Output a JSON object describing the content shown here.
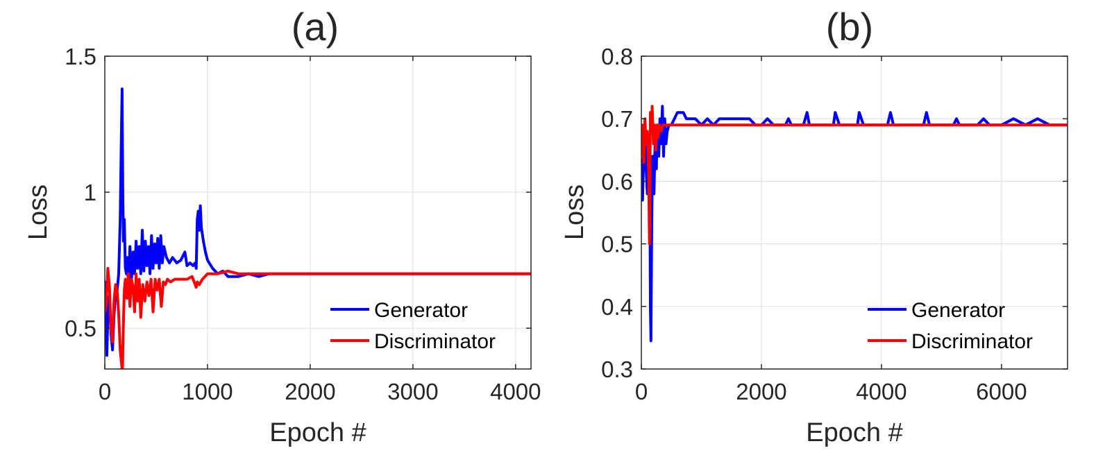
{
  "chart_data": [
    {
      "type": "line",
      "panel_label": "(a)",
      "title": "(a)",
      "xlabel": "Epoch #",
      "ylabel": "Loss",
      "xlim": [
        0,
        4150
      ],
      "ylim": [
        0.35,
        1.5
      ],
      "xticks": [
        0,
        1000,
        2000,
        3000,
        4000
      ],
      "yticks": [
        0.5,
        1,
        1.5
      ],
      "xtick_labels": [
        "0",
        "1000",
        "2000",
        "3000",
        "4000"
      ],
      "ytick_labels": [
        "0.5",
        "1",
        "1.5"
      ],
      "grid": true,
      "legend_position": "bottom-right",
      "series": [
        {
          "name": "Generator",
          "color": "#0000ff",
          "x": [
            0,
            10,
            20,
            30,
            45,
            60,
            75,
            90,
            100,
            110,
            120,
            135,
            150,
            160,
            168,
            175,
            182,
            190,
            200,
            210,
            220,
            230,
            245,
            260,
            275,
            290,
            305,
            320,
            335,
            350,
            365,
            380,
            395,
            410,
            425,
            440,
            455,
            470,
            485,
            500,
            515,
            530,
            545,
            560,
            575,
            600,
            630,
            660,
            700,
            740,
            780,
            800,
            830,
            860,
            880,
            890,
            900,
            910,
            920,
            930,
            940,
            960,
            980,
            1000,
            1050,
            1100,
            1150,
            1200,
            1300,
            1400,
            1500,
            1600,
            1800,
            2000,
            2400,
            2800,
            3200,
            3600,
            4000,
            4150
          ],
          "y": [
            0.67,
            0.55,
            0.4,
            0.55,
            0.62,
            0.48,
            0.42,
            0.55,
            0.6,
            0.62,
            0.64,
            0.7,
            0.9,
            1.18,
            1.38,
            1.0,
            0.82,
            0.9,
            0.72,
            0.7,
            0.76,
            0.65,
            0.8,
            0.68,
            0.78,
            0.7,
            0.82,
            0.72,
            0.8,
            0.7,
            0.86,
            0.71,
            0.82,
            0.73,
            0.8,
            0.7,
            0.84,
            0.72,
            0.81,
            0.74,
            0.83,
            0.72,
            0.84,
            0.74,
            0.8,
            0.76,
            0.74,
            0.76,
            0.74,
            0.75,
            0.78,
            0.73,
            0.74,
            0.73,
            0.74,
            0.72,
            0.9,
            0.93,
            0.86,
            0.95,
            0.87,
            0.82,
            0.78,
            0.75,
            0.72,
            0.7,
            0.71,
            0.69,
            0.69,
            0.7,
            0.69,
            0.7,
            0.7,
            0.7,
            0.7,
            0.7,
            0.7,
            0.7,
            0.7,
            0.7
          ]
        },
        {
          "name": "Discriminator",
          "color": "#ff0000",
          "x": [
            0,
            15,
            30,
            45,
            60,
            75,
            90,
            105,
            120,
            135,
            150,
            160,
            172,
            180,
            190,
            200,
            215,
            230,
            245,
            260,
            275,
            290,
            305,
            320,
            335,
            350,
            370,
            390,
            410,
            430,
            450,
            470,
            490,
            510,
            530,
            550,
            570,
            590,
            610,
            640,
            680,
            720,
            760,
            800,
            850,
            880,
            890,
            900,
            920,
            950,
            1000,
            1100,
            1200,
            1300,
            1500,
            1800,
            2200,
            2800,
            3400,
            4150
          ],
          "y": [
            0.56,
            0.6,
            0.72,
            0.65,
            0.5,
            0.45,
            0.6,
            0.66,
            0.64,
            0.55,
            0.42,
            0.38,
            0.34,
            0.5,
            0.64,
            0.68,
            0.61,
            0.7,
            0.58,
            0.68,
            0.65,
            0.56,
            0.7,
            0.6,
            0.68,
            0.54,
            0.66,
            0.6,
            0.67,
            0.62,
            0.68,
            0.56,
            0.68,
            0.64,
            0.68,
            0.58,
            0.67,
            0.66,
            0.68,
            0.67,
            0.68,
            0.68,
            0.68,
            0.68,
            0.69,
            0.66,
            0.65,
            0.67,
            0.66,
            0.68,
            0.7,
            0.7,
            0.71,
            0.7,
            0.7,
            0.7,
            0.7,
            0.7,
            0.7,
            0.7
          ]
        }
      ]
    },
    {
      "type": "line",
      "panel_label": "(b)",
      "title": "(b)",
      "xlabel": "Epoch #",
      "ylabel": "Loss",
      "xlim": [
        0,
        7100
      ],
      "ylim": [
        0.3,
        0.8
      ],
      "xticks": [
        0,
        2000,
        4000,
        6000
      ],
      "yticks": [
        0.3,
        0.4,
        0.5,
        0.6,
        0.7,
        0.8
      ],
      "xtick_labels": [
        "0",
        "2000",
        "4000",
        "6000"
      ],
      "ytick_labels": [
        "0.3",
        "0.4",
        "0.5",
        "0.6",
        "0.7",
        "0.8"
      ],
      "grid": true,
      "legend_position": "bottom-right",
      "series": [
        {
          "name": "Generator",
          "color": "#0000ff",
          "x": [
            0,
            20,
            40,
            60,
            80,
            100,
            120,
            140,
            150,
            160,
            175,
            190,
            210,
            230,
            250,
            270,
            290,
            310,
            330,
            350,
            370,
            390,
            410,
            430,
            460,
            500,
            550,
            600,
            650,
            700,
            750,
            800,
            900,
            1000,
            1100,
            1200,
            1300,
            1400,
            1500,
            1600,
            1700,
            1800,
            1900,
            2000,
            2100,
            2200,
            2300,
            2400,
            2450,
            2500,
            2600,
            2700,
            2760,
            2800,
            2900,
            3000,
            3100,
            3200,
            3230,
            3300,
            3400,
            3500,
            3600,
            3630,
            3700,
            3800,
            3900,
            4000,
            4100,
            4150,
            4200,
            4300,
            4400,
            4500,
            4600,
            4700,
            4750,
            4800,
            4900,
            5000,
            5100,
            5200,
            5250,
            5300,
            5400,
            5500,
            5600,
            5700,
            5800,
            5900,
            6000,
            6200,
            6400,
            6600,
            6800,
            7000,
            7100
          ],
          "y": [
            0.68,
            0.57,
            0.64,
            0.66,
            0.62,
            0.58,
            0.67,
            0.64,
            0.4,
            0.345,
            0.55,
            0.64,
            0.58,
            0.67,
            0.62,
            0.69,
            0.64,
            0.7,
            0.66,
            0.72,
            0.64,
            0.7,
            0.66,
            0.68,
            0.69,
            0.69,
            0.7,
            0.71,
            0.71,
            0.71,
            0.7,
            0.7,
            0.7,
            0.69,
            0.7,
            0.69,
            0.7,
            0.7,
            0.7,
            0.7,
            0.7,
            0.7,
            0.69,
            0.69,
            0.7,
            0.69,
            0.69,
            0.69,
            0.7,
            0.69,
            0.69,
            0.69,
            0.71,
            0.69,
            0.69,
            0.69,
            0.69,
            0.69,
            0.71,
            0.69,
            0.69,
            0.69,
            0.69,
            0.71,
            0.69,
            0.69,
            0.69,
            0.69,
            0.69,
            0.71,
            0.69,
            0.69,
            0.69,
            0.69,
            0.69,
            0.69,
            0.71,
            0.69,
            0.69,
            0.69,
            0.69,
            0.69,
            0.7,
            0.69,
            0.69,
            0.69,
            0.69,
            0.7,
            0.69,
            0.69,
            0.69,
            0.7,
            0.69,
            0.7,
            0.69,
            0.69,
            0.69
          ]
        },
        {
          "name": "Discriminator",
          "color": "#ff0000",
          "x": [
            0,
            20,
            40,
            60,
            80,
            100,
            120,
            135,
            150,
            165,
            180,
            200,
            220,
            240,
            260,
            280,
            300,
            330,
            360,
            400,
            450,
            500,
            600,
            700,
            800,
            1000,
            1200,
            1400,
            1600,
            2000,
            3000,
            4000,
            5000,
            6000,
            7100
          ],
          "y": [
            0.64,
            0.69,
            0.63,
            0.7,
            0.66,
            0.68,
            0.62,
            0.5,
            0.71,
            0.68,
            0.72,
            0.66,
            0.69,
            0.65,
            0.69,
            0.67,
            0.69,
            0.68,
            0.69,
            0.69,
            0.69,
            0.69,
            0.69,
            0.69,
            0.69,
            0.69,
            0.69,
            0.69,
            0.69,
            0.69,
            0.69,
            0.69,
            0.69,
            0.69,
            0.69
          ]
        }
      ]
    }
  ]
}
